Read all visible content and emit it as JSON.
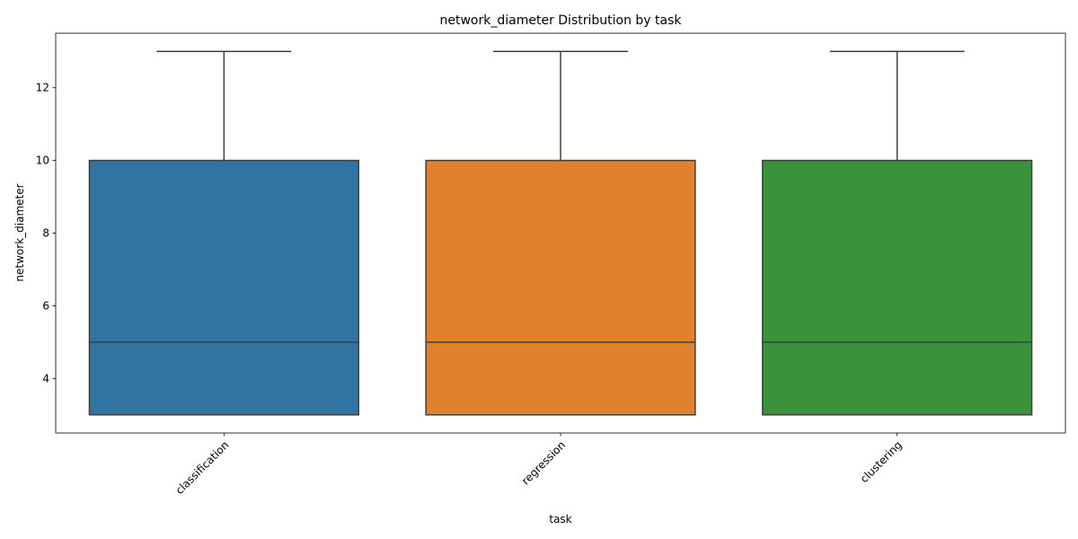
{
  "chart_data": {
    "type": "box",
    "title": "network_diameter Distribution by task",
    "xlabel": "task",
    "ylabel": "network_diameter",
    "ylim": [
      2.5,
      13.5
    ],
    "yticks": [
      "4",
      "6",
      "8",
      "10",
      "12"
    ],
    "ytick_values": [
      4,
      6,
      8,
      10,
      12
    ],
    "categories": [
      "classification",
      "regression",
      "clustering"
    ],
    "colors": [
      "#3274a1",
      "#e1812c",
      "#3a923a"
    ],
    "boxes": [
      {
        "category": "classification",
        "whisker_low": 3,
        "q1": 3,
        "median": 5,
        "q3": 10,
        "whisker_high": 13
      },
      {
        "category": "regression",
        "whisker_low": 3,
        "q1": 3,
        "median": 5,
        "q3": 10,
        "whisker_high": 13
      },
      {
        "category": "clustering",
        "whisker_low": 3,
        "q1": 3,
        "median": 5,
        "q3": 10,
        "whisker_high": 13
      }
    ],
    "grid": false,
    "xtick_rotation": 45
  }
}
